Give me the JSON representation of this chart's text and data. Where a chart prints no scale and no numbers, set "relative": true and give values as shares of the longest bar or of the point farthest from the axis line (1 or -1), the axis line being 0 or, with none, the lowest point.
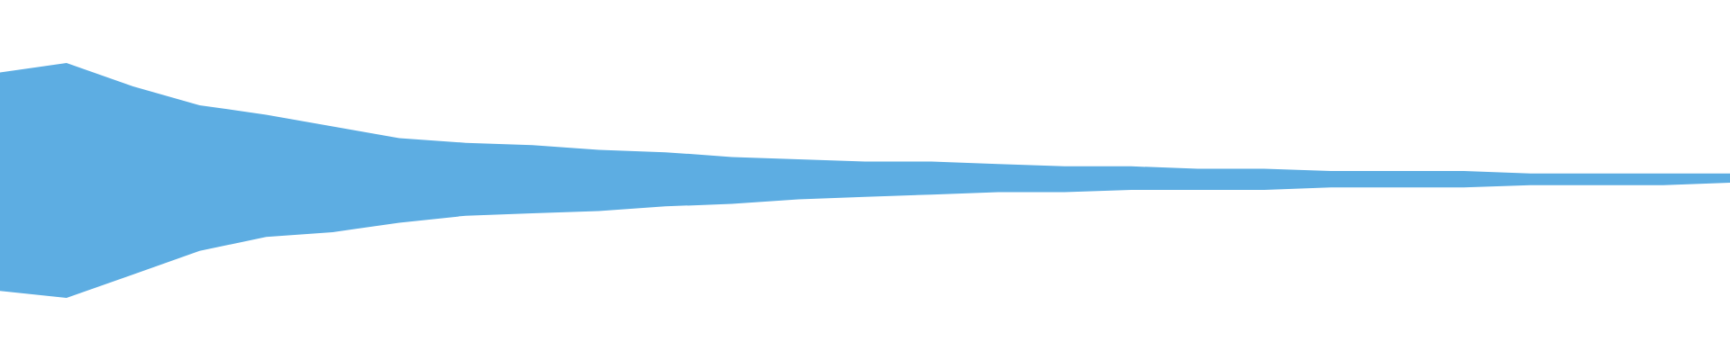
{
  "chart_data": {
    "type": "area",
    "relative": true,
    "categories": [
      null,
      null,
      null,
      null,
      null,
      null,
      null,
      null,
      null,
      null,
      null,
      null,
      null,
      null,
      null,
      null,
      null,
      null,
      null,
      null,
      null,
      null,
      null,
      null,
      null,
      null,
      null
    ],
    "series": [
      {
        "color": "#5dade2",
        "values": [
          0.96,
          1.0,
          0.9,
          0.82,
          0.78,
          0.73,
          0.68,
          0.66,
          0.65,
          0.63,
          0.62,
          0.6,
          0.59,
          0.58,
          0.58,
          0.57,
          0.56,
          0.56,
          0.55,
          0.55,
          0.54,
          0.54,
          0.54,
          0.53,
          0.53,
          0.53,
          0.53
        ]
      },
      {
        "color": "#ffffff",
        "values": [
          0.03,
          0.0,
          0.1,
          0.2,
          0.26,
          0.28,
          0.32,
          0.35,
          0.36,
          0.37,
          0.39,
          0.4,
          0.42,
          0.43,
          0.44,
          0.45,
          0.45,
          0.46,
          0.46,
          0.46,
          0.47,
          0.47,
          0.47,
          0.48,
          0.48,
          0.48,
          0.49
        ]
      }
    ]
  }
}
